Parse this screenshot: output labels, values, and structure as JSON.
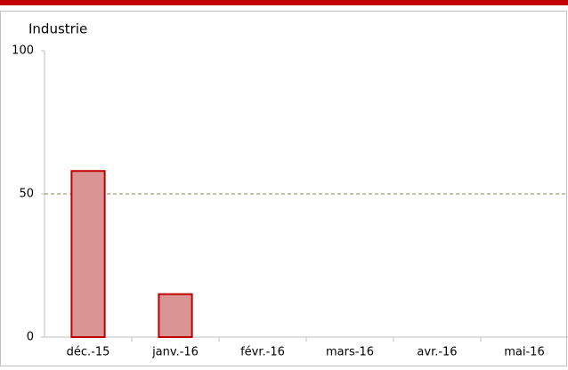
{
  "chart_data": {
    "type": "bar",
    "title": "Industrie",
    "categories": [
      "déc.-15",
      "janv.-16",
      "févr.-16",
      "mars-16",
      "avr.-16",
      "mai-16"
    ],
    "values": [
      58,
      15,
      null,
      null,
      null,
      null
    ],
    "color": "#d99594",
    "edge_color": "#c00000",
    "reference_line": 50,
    "reference_color": "#8a8a5a",
    "ylim": [
      0,
      100
    ],
    "yticks": [
      0,
      50,
      100
    ],
    "grid": false
  }
}
